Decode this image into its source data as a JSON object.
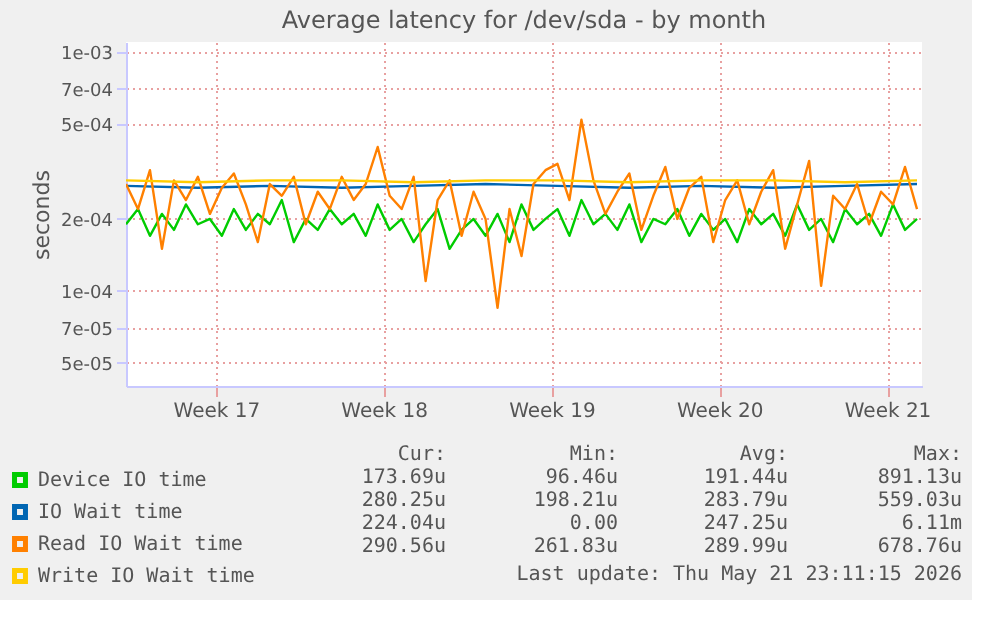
{
  "chart_data": {
    "type": "line",
    "title": "Average latency for /dev/sda - by month",
    "ylabel": "seconds",
    "log": true,
    "grid": true,
    "legend": "bottom left",
    "line_style": "solid",
    "marker": "none",
    "ylim": [
      4e-05,
      0.0011
    ],
    "yticks": [
      {
        "value": 5e-05,
        "label": "5e-05"
      },
      {
        "value": 7e-05,
        "label": "7e-05"
      },
      {
        "value": 0.0001,
        "label": "1e-04"
      },
      {
        "value": 0.0002,
        "label": "2e-04"
      },
      {
        "value": 0.0005,
        "label": "5e-04"
      },
      {
        "value": 0.0007,
        "label": "7e-04"
      },
      {
        "value": 0.001,
        "label": "1e-03"
      }
    ],
    "xlim": [
      "2026-04-18T18:00",
      "2026-05-21T23:00"
    ],
    "xticks": [
      {
        "value": "2026-04-22T12:00",
        "label": "Week 17"
      },
      {
        "value": "2026-04-29T12:00",
        "label": "Week 18"
      },
      {
        "value": "2026-05-06T12:00",
        "label": "Week 19"
      },
      {
        "value": "2026-05-13T12:00",
        "label": "Week 20"
      },
      {
        "value": "2026-05-20T12:00",
        "label": "Week 21"
      }
    ],
    "x": [
      "2026-04-18T18:00",
      "2026-04-19T06:00",
      "2026-04-19T18:00",
      "2026-04-20T06:00",
      "2026-04-20T18:00",
      "2026-04-21T06:00",
      "2026-04-21T18:00",
      "2026-04-22T06:00",
      "2026-04-22T18:00",
      "2026-04-23T06:00",
      "2026-04-23T18:00",
      "2026-04-24T06:00",
      "2026-04-24T18:00",
      "2026-04-25T06:00",
      "2026-04-25T18:00",
      "2026-04-26T06:00",
      "2026-04-26T18:00",
      "2026-04-27T06:00",
      "2026-04-27T18:00",
      "2026-04-28T06:00",
      "2026-04-28T18:00",
      "2026-04-29T06:00",
      "2026-04-29T18:00",
      "2026-04-30T06:00",
      "2026-04-30T18:00",
      "2026-05-01T06:00",
      "2026-05-01T18:00",
      "2026-05-02T06:00",
      "2026-05-02T18:00",
      "2026-05-03T06:00",
      "2026-05-03T18:00",
      "2026-05-04T06:00",
      "2026-05-04T18:00",
      "2026-05-05T06:00",
      "2026-05-05T18:00",
      "2026-05-06T06:00",
      "2026-05-06T18:00",
      "2026-05-07T06:00",
      "2026-05-07T18:00",
      "2026-05-08T06:00",
      "2026-05-08T18:00",
      "2026-05-09T06:00",
      "2026-05-09T18:00",
      "2026-05-10T06:00",
      "2026-05-10T18:00",
      "2026-05-11T06:00",
      "2026-05-11T18:00",
      "2026-05-12T06:00",
      "2026-05-12T18:00",
      "2026-05-13T06:00",
      "2026-05-13T18:00",
      "2026-05-14T06:00",
      "2026-05-14T18:00",
      "2026-05-15T06:00",
      "2026-05-15T18:00",
      "2026-05-16T06:00",
      "2026-05-16T18:00",
      "2026-05-17T06:00",
      "2026-05-17T18:00",
      "2026-05-18T06:00",
      "2026-05-18T18:00",
      "2026-05-19T06:00",
      "2026-05-19T18:00",
      "2026-05-20T06:00",
      "2026-05-20T18:00",
      "2026-05-21T06:00",
      "2026-05-21T18:00"
    ],
    "series": [
      {
        "name": "Device IO time",
        "color": "#00cc00",
        "values": [
          0.00019,
          0.00022,
          0.00017,
          0.00021,
          0.00018,
          0.00023,
          0.00019,
          0.0002,
          0.00017,
          0.00022,
          0.00018,
          0.00021,
          0.00019,
          0.00024,
          0.00016,
          0.0002,
          0.00018,
          0.00022,
          0.00019,
          0.00021,
          0.00017,
          0.00023,
          0.00018,
          0.0002,
          0.00016,
          0.00019,
          0.00022,
          0.00015,
          0.00018,
          0.0002,
          0.00017,
          0.00021,
          0.00016,
          0.00023,
          0.00018,
          0.0002,
          0.00022,
          0.00017,
          0.00024,
          0.00019,
          0.00021,
          0.00018,
          0.00023,
          0.00016,
          0.0002,
          0.00019,
          0.00022,
          0.00017,
          0.00021,
          0.00018,
          0.0002,
          0.00016,
          0.00022,
          0.00019,
          0.00021,
          0.00017,
          0.00023,
          0.00018,
          0.0002,
          0.00016,
          0.00022,
          0.00019,
          0.00021,
          0.00017,
          0.00023,
          0.00018,
          0.0002
        ]
      },
      {
        "name": "IO Wait time",
        "color": "#0066b3",
        "x": [
          "2026-04-18T18:00",
          "2026-04-21T18:00",
          "2026-04-24T18:00",
          "2026-04-27T18:00",
          "2026-04-30T18:00",
          "2026-05-03T18:00",
          "2026-05-06T18:00",
          "2026-05-09T18:00",
          "2026-05-12T18:00",
          "2026-05-15T18:00",
          "2026-05-18T18:00",
          "2026-05-21T18:00"
        ],
        "values": [
          0.000275,
          0.00027,
          0.000275,
          0.00027,
          0.000275,
          0.00028,
          0.000275,
          0.00027,
          0.000275,
          0.00027,
          0.000275,
          0.00028
        ]
      },
      {
        "name": "Read IO Wait time",
        "color": "#ff8000",
        "values": [
          0.00028,
          0.00022,
          0.00032,
          0.00015,
          0.00029,
          0.00024,
          0.0003,
          0.00021,
          0.00027,
          0.00031,
          0.00023,
          0.00016,
          0.00028,
          0.00025,
          0.0003,
          0.00019,
          0.00026,
          0.00022,
          0.0003,
          0.00024,
          0.00028,
          0.0004,
          0.00025,
          0.00022,
          0.0003,
          0.00011,
          0.00024,
          0.00029,
          0.00017,
          0.00026,
          0.0002,
          8.5e-05,
          0.00022,
          0.00014,
          0.00028,
          0.00032,
          0.00034,
          0.00024,
          0.00052,
          0.00029,
          0.00021,
          0.00026,
          0.00031,
          0.00018,
          0.00025,
          0.00033,
          0.0002,
          0.00027,
          0.0003,
          0.00016,
          0.00024,
          0.00029,
          0.00019,
          0.00026,
          0.00032,
          0.00015,
          0.00023,
          0.00035,
          0.000105,
          0.00025,
          0.00022,
          0.00028,
          0.00019,
          0.00026,
          0.00023,
          0.00033,
          0.00022
        ]
      },
      {
        "name": "Write IO Wait time",
        "color": "#ffcc00",
        "x": [
          "2026-04-18T18:00",
          "2026-04-21T18:00",
          "2026-04-24T18:00",
          "2026-04-27T18:00",
          "2026-04-30T18:00",
          "2026-05-03T18:00",
          "2026-05-06T18:00",
          "2026-05-09T18:00",
          "2026-05-12T18:00",
          "2026-05-15T18:00",
          "2026-05-18T18:00",
          "2026-05-21T18:00"
        ],
        "values": [
          0.00029,
          0.000285,
          0.00029,
          0.00029,
          0.000285,
          0.00029,
          0.00029,
          0.000285,
          0.00029,
          0.00029,
          0.000285,
          0.00029
        ]
      }
    ],
    "annotations": [
      "Cur:",
      "Min:",
      "Avg:",
      "Max:",
      "173.69u",
      "96.46u",
      "191.44u",
      "891.13u",
      "280.25u",
      "198.21u",
      "283.79u",
      "559.03u",
      "224.04u",
      "0.00",
      "247.25u",
      "6.11m",
      "290.56u",
      "261.83u",
      "289.99u",
      "678.76u",
      "Last update: Thu May 21 23:11:15 2026"
    ]
  }
}
